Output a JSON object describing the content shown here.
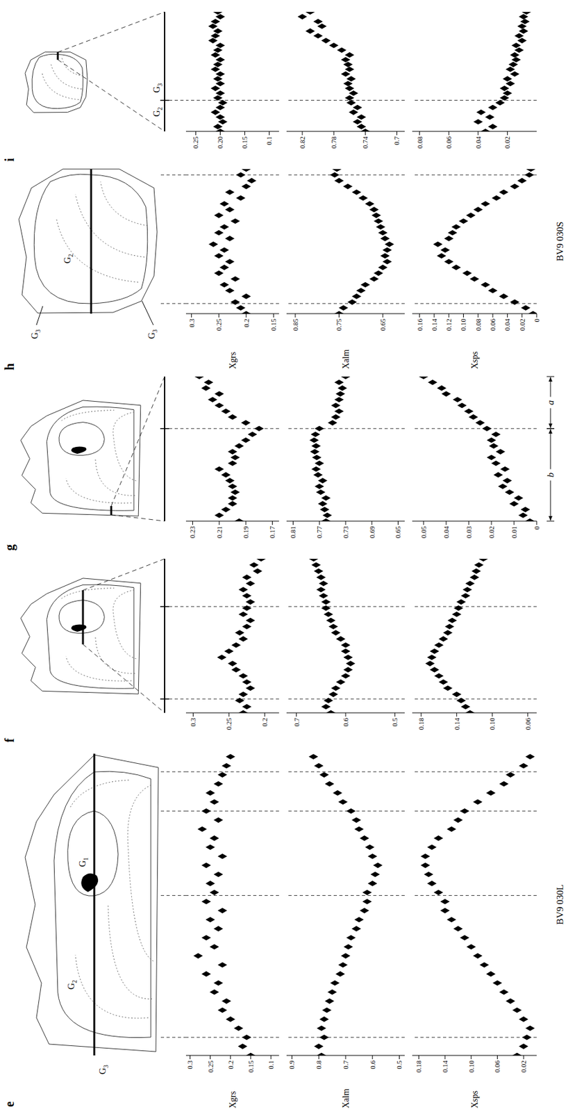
{
  "chart_data": [
    {
      "type": "scatter",
      "title": "e",
      "annotations": [
        "BV9 030L"
      ],
      "sketch_labels": [
        "G1",
        "G2",
        "G3"
      ],
      "marker": "diamond",
      "color": "#000000",
      "tick_labels": "y",
      "xlim": [
        0,
        100
      ],
      "boundaries": [
        6,
        53,
        81,
        94
      ],
      "x": [
        0,
        3,
        6,
        9,
        12,
        15,
        18,
        21,
        24,
        27,
        30,
        33,
        36,
        39,
        42,
        45,
        48,
        51,
        54,
        57,
        60,
        63,
        66,
        69,
        72,
        75,
        78,
        81,
        84,
        87,
        90,
        93,
        96,
        99
      ],
      "series": [
        {
          "name": "Xgrs",
          "ylim": [
            0.08,
            0.31
          ],
          "yticks": [
            0.3,
            0.25,
            0.2,
            0.15,
            0.1
          ],
          "values": [
            0.15,
            0.17,
            0.16,
            0.18,
            0.2,
            0.22,
            0.21,
            0.24,
            0.23,
            0.26,
            0.22,
            0.28,
            0.24,
            0.26,
            0.23,
            0.25,
            0.22,
            0.26,
            0.24,
            0.25,
            0.23,
            0.26,
            0.22,
            0.25,
            0.24,
            0.27,
            0.23,
            0.26,
            0.24,
            0.25,
            0.23,
            0.22,
            0.21,
            0.2
          ]
        },
        {
          "name": "Xalm",
          "ylim": [
            0.48,
            0.92
          ],
          "yticks": [
            0.9,
            0.8,
            0.7,
            0.6,
            0.5
          ],
          "values": [
            0.79,
            0.8,
            0.78,
            0.79,
            0.78,
            0.77,
            0.76,
            0.75,
            0.74,
            0.72,
            0.71,
            0.7,
            0.69,
            0.68,
            0.66,
            0.65,
            0.63,
            0.62,
            0.62,
            0.6,
            0.59,
            0.58,
            0.6,
            0.61,
            0.63,
            0.65,
            0.66,
            0.68,
            0.71,
            0.73,
            0.76,
            0.78,
            0.8,
            0.82
          ]
        },
        {
          "name": "Xsps",
          "ylim": [
            0,
            0.19
          ],
          "yticks": [
            0.18,
            0.14,
            {
              "value": 0.1,
              "label": "0.10"
            },
            0.06,
            0.02
          ],
          "values": [
            0.03,
            0.02,
            0.015,
            0.01,
            0.02,
            0.03,
            0.04,
            0.05,
            0.06,
            0.07,
            0.08,
            0.09,
            0.1,
            0.11,
            0.12,
            0.13,
            0.14,
            0.14,
            0.15,
            0.16,
            0.165,
            0.17,
            0.17,
            0.16,
            0.15,
            0.13,
            0.12,
            0.11,
            0.09,
            0.07,
            0.05,
            0.04,
            0.02,
            0.01
          ]
        }
      ]
    },
    {
      "type": "scatter",
      "title": "f",
      "marker": "diamond",
      "color": "#000000",
      "tick_labels": "y",
      "xlim": [
        0,
        100
      ],
      "boundaries": [
        9,
        69
      ],
      "x": [
        0,
        4,
        8,
        12,
        16,
        20,
        24,
        28,
        32,
        36,
        40,
        44,
        48,
        52,
        56,
        60,
        64,
        68,
        72,
        76,
        80,
        84,
        88,
        92,
        96,
        100
      ],
      "series": [
        {
          "ylim": [
            0.18,
            0.31
          ],
          "yticks": [
            0.3,
            0.25,
            0.2
          ],
          "values": [
            0.23,
            0.225,
            0.235,
            0.23,
            0.22,
            0.225,
            0.23,
            0.24,
            0.245,
            0.26,
            0.25,
            0.24,
            0.23,
            0.235,
            0.225,
            0.22,
            0.23,
            0.225,
            0.22,
            0.225,
            0.23,
            0.22,
            0.225,
            0.21,
            0.215,
            0.205
          ]
        },
        {
          "ylim": [
            0.48,
            0.72
          ],
          "yticks": [
            0.7,
            0.6,
            0.5
          ],
          "values": [
            0.63,
            0.64,
            0.635,
            0.625,
            0.62,
            0.61,
            0.6,
            0.595,
            0.59,
            0.595,
            0.6,
            0.6,
            0.61,
            0.62,
            0.625,
            0.63,
            0.635,
            0.64,
            0.64,
            0.645,
            0.65,
            0.645,
            0.65,
            0.655,
            0.66,
            0.665
          ]
        },
        {
          "ylim": [
            0.05,
            0.19
          ],
          "yticks": [
            0.18,
            0.14,
            {
              "value": 0.1,
              "label": "0.10"
            },
            0.06
          ],
          "values": [
            0.125,
            0.13,
            0.135,
            0.14,
            0.15,
            0.155,
            0.16,
            0.165,
            0.17,
            0.168,
            0.165,
            0.16,
            0.155,
            0.15,
            0.148,
            0.145,
            0.14,
            0.138,
            0.135,
            0.13,
            0.128,
            0.125,
            0.12,
            0.118,
            0.115,
            0.11
          ]
        }
      ]
    },
    {
      "type": "scatter",
      "title": "g",
      "segments": [
        {
          "label": "b",
          "x": [
            0,
            64
          ]
        },
        {
          "label": "a",
          "x": [
            64,
            100
          ]
        }
      ],
      "marker": "diamond",
      "color": "#000000",
      "tick_labels": "y",
      "xlim": [
        0,
        100
      ],
      "boundaries": [
        64
      ],
      "x": [
        0,
        4,
        8,
        12,
        16,
        20,
        24,
        28,
        32,
        36,
        40,
        44,
        48,
        52,
        56,
        60,
        64,
        68,
        72,
        76,
        80,
        84,
        88,
        92,
        96,
        100
      ],
      "series": [
        {
          "ylim": [
            0.165,
            0.235
          ],
          "yticks": [
            0.23,
            0.21,
            0.19,
            0.17
          ],
          "values": [
            0.195,
            0.21,
            0.205,
            0.2,
            0.2,
            0.198,
            0.2,
            0.202,
            0.205,
            0.21,
            0.2,
            0.198,
            0.2,
            0.195,
            0.19,
            0.185,
            0.18,
            0.19,
            0.2,
            0.205,
            0.21,
            0.215,
            0.21,
            0.22,
            0.218,
            0.225
          ]
        },
        {
          "ylim": [
            0.64,
            0.82
          ],
          "yticks": [
            0.81,
            0.77,
            0.73,
            0.69,
            0.65
          ],
          "values": [
            0.76,
            0.758,
            0.762,
            0.765,
            0.76,
            0.768,
            0.77,
            0.765,
            0.772,
            0.775,
            0.77,
            0.774,
            0.777,
            0.775,
            0.778,
            0.776,
            0.77,
            0.75,
            0.745,
            0.74,
            0.745,
            0.74,
            0.738,
            0.735,
            0.74,
            0.73
          ]
        },
        {
          "ylim": [
            0,
            0.055
          ],
          "yticks": [
            0.05,
            0.04,
            0.03,
            0.02,
            0.01,
            0
          ],
          "values": [
            0.003,
            0.006,
            0.005,
            0.01,
            0.008,
            0.012,
            0.015,
            0.013,
            0.017,
            0.014,
            0.018,
            0.02,
            0.016,
            0.019,
            0.02,
            0.018,
            0.022,
            0.025,
            0.028,
            0.03,
            0.033,
            0.035,
            0.04,
            0.042,
            0.046,
            0.05
          ]
        }
      ]
    },
    {
      "type": "scatter",
      "title": "h",
      "annotations": [
        "BV9 030S"
      ],
      "sketch_labels": [
        "G3",
        "G2",
        "G3"
      ],
      "marker": "diamond",
      "color": "#000000",
      "tick_labels": "y",
      "xlim": [
        0,
        100
      ],
      "boundaries": [
        7,
        96
      ],
      "x": [
        0,
        4,
        8,
        12,
        16,
        20,
        24,
        28,
        32,
        36,
        40,
        44,
        48,
        52,
        56,
        60,
        64,
        68,
        72,
        76,
        80,
        84,
        88,
        92,
        96,
        100
      ],
      "series": [
        {
          "name": "Xgrs",
          "ylim": [
            0.14,
            0.31
          ],
          "yticks": [
            0.3,
            0.25,
            0.2,
            0.15
          ],
          "values": [
            0.2,
            0.21,
            0.22,
            0.2,
            0.23,
            0.24,
            0.22,
            0.25,
            0.24,
            0.23,
            0.25,
            0.24,
            0.26,
            0.23,
            0.25,
            0.24,
            0.22,
            0.25,
            0.23,
            0.24,
            0.21,
            0.23,
            0.2,
            0.19,
            0.21,
            0.2
          ]
        },
        {
          "name": "Xalm",
          "ylim": [
            0.6,
            0.87
          ],
          "yticks": [
            0.85,
            0.75,
            0.65
          ],
          "values": [
            0.75,
            0.74,
            0.72,
            0.71,
            0.7,
            0.69,
            0.67,
            0.66,
            0.65,
            0.64,
            0.645,
            0.64,
            0.635,
            0.645,
            0.65,
            0.655,
            0.66,
            0.665,
            0.67,
            0.68,
            0.695,
            0.71,
            0.73,
            0.75,
            0.76,
            0.755
          ]
        },
        {
          "name": "Xsps",
          "ylim": [
            0,
            0.17
          ],
          "yticks": [
            0.16,
            0.14,
            0.12,
            {
              "value": 0.1,
              "label": "0.10"
            },
            0.08,
            0.06,
            0.04,
            0.02,
            0
          ],
          "values": [
            0.005,
            0.015,
            0.03,
            0.045,
            0.06,
            0.07,
            0.085,
            0.095,
            0.11,
            0.12,
            0.13,
            0.125,
            0.135,
            0.12,
            0.115,
            0.11,
            0.1,
            0.09,
            0.08,
            0.07,
            0.055,
            0.045,
            0.03,
            0.02,
            0.01,
            0.008
          ]
        }
      ]
    },
    {
      "type": "scatter",
      "title": "i",
      "scale_labels": [
        "G2",
        "G3"
      ],
      "marker": "diamond",
      "color": "#000000",
      "tick_labels": "y",
      "xlim": [
        0,
        100
      ],
      "boundaries": [
        26
      ],
      "x": [
        0,
        4,
        8,
        12,
        16,
        20,
        24,
        28,
        32,
        36,
        40,
        44,
        48,
        52,
        56,
        60,
        64,
        68,
        72,
        76,
        80,
        84,
        88,
        92,
        96,
        100
      ],
      "series": [
        {
          "ylim": [
            0.08,
            0.27
          ],
          "yticks": [
            0.25,
            {
              "value": 0.2,
              "label": "0.20"
            },
            0.15,
            0.1
          ],
          "values": [
            0.2,
            0.205,
            0.195,
            0.2,
            0.21,
            0.2,
            0.195,
            0.205,
            0.2,
            0.21,
            0.2,
            0.205,
            0.2,
            0.21,
            0.205,
            0.2,
            0.21,
            0.205,
            0.2,
            0.215,
            0.21,
            0.205,
            0.215,
            0.21,
            0.2,
            0.205
          ]
        },
        {
          "ylim": [
            0.69,
            0.84
          ],
          "yticks": [
            0.82,
            0.78,
            0.74,
            0.7
          ],
          "values": [
            0.74,
            0.745,
            0.75,
            0.745,
            0.755,
            0.75,
            0.758,
            0.76,
            0.755,
            0.76,
            0.762,
            0.758,
            0.765,
            0.76,
            0.762,
            0.765,
            0.76,
            0.77,
            0.78,
            0.79,
            0.8,
            0.81,
            0.795,
            0.8,
            0.82,
            0.81
          ]
        },
        {
          "ylim": [
            0,
            0.085
          ],
          "yticks": [
            0.08,
            0.06,
            0.04,
            0.02
          ],
          "values": [
            0.035,
            0.03,
            0.04,
            0.032,
            0.038,
            0.03,
            0.025,
            0.022,
            0.02,
            0.022,
            0.018,
            0.02,
            0.015,
            0.018,
            0.016,
            0.014,
            0.015,
            0.012,
            0.014,
            0.01,
            0.012,
            0.009,
            0.01,
            0.008,
            0.009,
            0.007
          ]
        }
      ]
    }
  ]
}
